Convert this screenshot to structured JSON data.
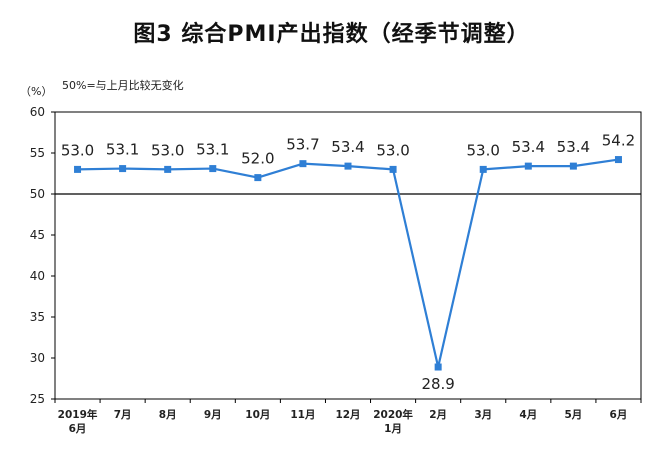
{
  "title": "图3 综合PMI产出指数（经季节调整）",
  "unit_label": "（%）",
  "note": "50%=与上月比较无变化",
  "chart_data": {
    "type": "line",
    "title": "图3 综合PMI产出指数（经季节调整）",
    "ylabel": "（%）",
    "ylim": [
      25,
      60
    ],
    "yticks": [
      25,
      30,
      35,
      40,
      45,
      50,
      55,
      60
    ],
    "reference_line": 50,
    "grid": false,
    "categories": [
      [
        "2019年",
        "6月"
      ],
      [
        "7月"
      ],
      [
        "8月"
      ],
      [
        "9月"
      ],
      [
        "10月"
      ],
      [
        "11月"
      ],
      [
        "12月"
      ],
      [
        "2020年",
        "1月"
      ],
      [
        "2月"
      ],
      [
        "3月"
      ],
      [
        "4月"
      ],
      [
        "5月"
      ],
      [
        "6月"
      ]
    ],
    "values": [
      53.0,
      53.1,
      53.0,
      53.1,
      52.0,
      53.7,
      53.4,
      53.0,
      28.9,
      53.0,
      53.4,
      53.4,
      54.2
    ],
    "labels": [
      "53.0",
      "53.1",
      "53.0",
      "53.1",
      "52.0",
      "53.7",
      "53.4",
      "53.0",
      "28.9",
      "53.0",
      "53.4",
      "53.4",
      "54.2"
    ],
    "line_color": "#2f7fd5",
    "label_color": "#222222"
  }
}
